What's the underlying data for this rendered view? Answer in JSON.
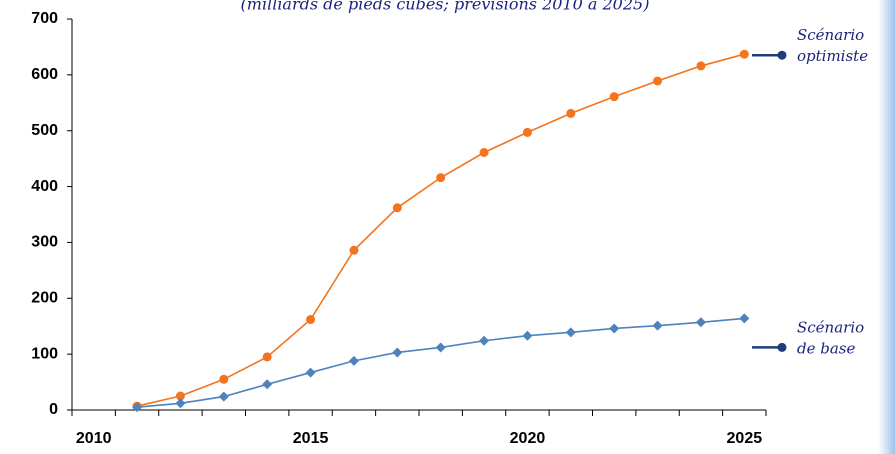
{
  "chart_data": {
    "type": "line",
    "title": "(milliards de pieds cubes; prévisions 2010 à 2025)",
    "categories": [
      "2010",
      null,
      null,
      null,
      null,
      "2015",
      null,
      null,
      null,
      null,
      "2020",
      null,
      null,
      null,
      null,
      "2025"
    ],
    "series": [
      {
        "name": "Scénario optimiste",
        "label": [
          "Scénario",
          "optimiste"
        ],
        "color": "#f4741e",
        "marker": "circle",
        "values": [
          null,
          7,
          25,
          55,
          95,
          162,
          286,
          362,
          416,
          461,
          497,
          531,
          561,
          589,
          616,
          637
        ]
      },
      {
        "name": "Scénario de base",
        "label": [
          "Scénario",
          "de base"
        ],
        "color": "#4f81bd",
        "marker": "diamond",
        "values": [
          null,
          5,
          12,
          24,
          46,
          67,
          88,
          103,
          112,
          124,
          133,
          139,
          146,
          151,
          157,
          164
        ]
      }
    ],
    "ylim": [
      0,
      700
    ],
    "yticks": [
      0,
      100,
      200,
      300,
      400,
      500,
      600,
      700
    ],
    "grid": false
  }
}
